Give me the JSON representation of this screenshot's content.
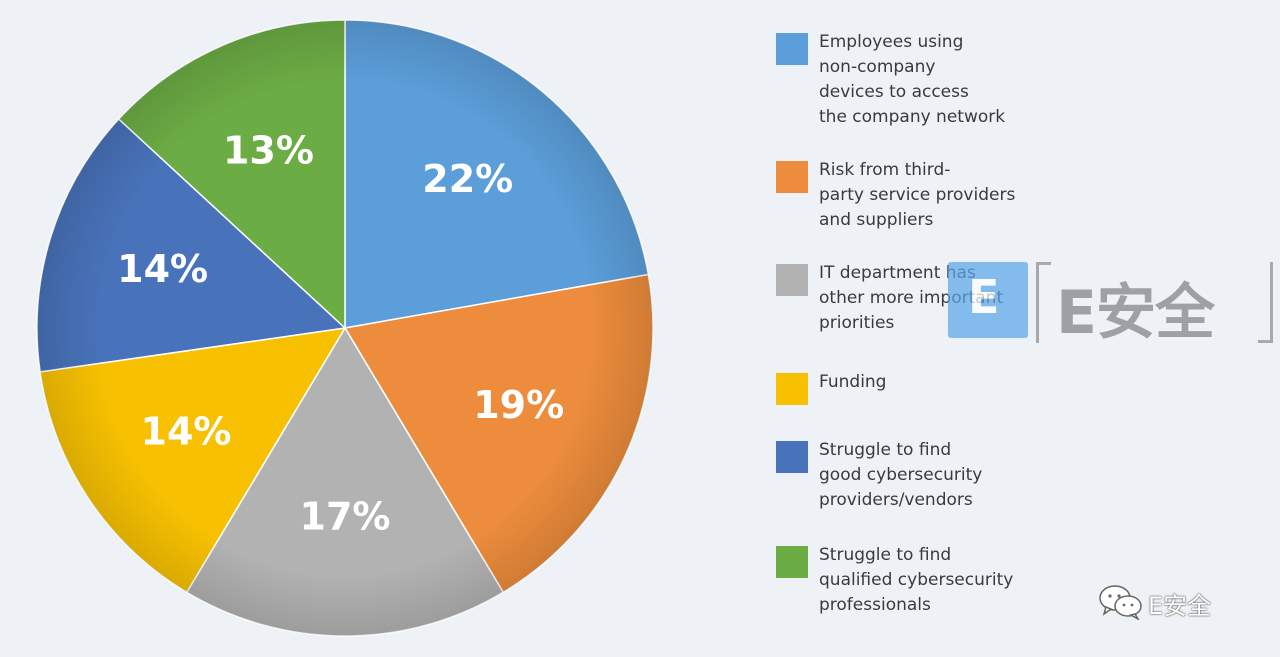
{
  "chart_data": {
    "type": "pie",
    "slices": [
      {
        "label": "Employees using\nnon-company\ndevices to access\nthe company network",
        "value": 22,
        "display": "22%",
        "color": "#5b9ed9"
      },
      {
        "label": "Risk from third-\nparty service providers\nand suppliers",
        "value": 19,
        "display": "19%",
        "color": "#ec8c3c"
      },
      {
        "label": "IT department has\nother more important\npriorities",
        "value": 17,
        "display": "17%",
        "color": "#b2b2b2"
      },
      {
        "label": "Funding",
        "value": 14,
        "display": "14%",
        "color": "#f7c101"
      },
      {
        "label": "Struggle to find\ngood  cybersecurity\nproviders/vendors",
        "value": 14,
        "display": "14%",
        "color": "#4872b9"
      },
      {
        "label": "Struggle to find\nqualified cybersecurity\nprofessionals",
        "value": 13,
        "display": "13%",
        "color": "#6cac44"
      }
    ]
  },
  "watermark": {
    "logo_text": "E安全",
    "badge_letter": "E"
  },
  "footer": {
    "brand_text": "E安全"
  }
}
